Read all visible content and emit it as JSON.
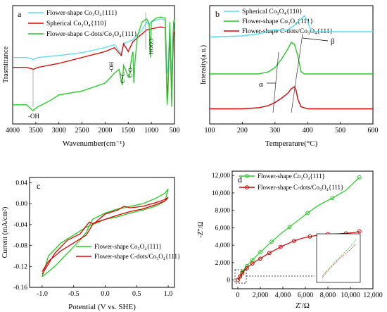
{
  "panels": {
    "a": {
      "label": "a",
      "xlabel": "Wavenumber(cm⁻¹)",
      "ylabel": "Trasmittance",
      "xticks": [
        "4000",
        "3500",
        "3000",
        "2500",
        "2000",
        "1500",
        "1000",
        "500"
      ],
      "annotations": [
        "-OH",
        "-OH",
        "C=C",
        "C-O",
        "-COOH"
      ],
      "legend": [
        "Flower-shape Co₃O₄{111}",
        "Spherical Co₃O₄{110}",
        "Flower-shape C-dots/Co₃O₄{111}"
      ]
    },
    "b": {
      "label": "b",
      "xlabel": "Temperature(°C)",
      "ylabel": "Intensity(a.u.)",
      "xticks": [
        "100",
        "200",
        "300",
        "400",
        "500",
        "600"
      ],
      "annotations": [
        "α",
        "β"
      ],
      "legend": [
        "Spherical Co₃O₄{110}",
        "Flower-shape Co₃O₄{111}",
        "Flower-shape C-dots/Co₃O₄{111}"
      ]
    },
    "c": {
      "label": "c",
      "xlabel": "Potential (V vs. SHE)",
      "ylabel": "Current (mA/cm²)",
      "xticks": [
        "-1.0",
        "-0.5",
        "0.0",
        "0.5",
        "1.0"
      ],
      "yticks": [
        "0.04",
        "0.00",
        "-0.04",
        "-0.08",
        "-0.12",
        "-0.16"
      ],
      "legend": [
        "Flower-shape Co₃O₄{111}",
        "Flower-shape C-dots/Co₃O₄{111}"
      ]
    },
    "d": {
      "label": "d",
      "xlabel": "Z'/Ω",
      "ylabel": "-Z''/Ω",
      "xticks": [
        "0",
        "2,000",
        "4,000",
        "6,000",
        "8,000",
        "10,000",
        "12,000"
      ],
      "yticks": [
        "12,000",
        "10,000",
        "8,000",
        "6,000",
        "4,000",
        "2,000",
        "0"
      ],
      "legend": [
        "Flower-shape Co₃O₄{111}",
        "Flower-shape C-dots/Co₃O₄{111}"
      ]
    }
  },
  "colors": {
    "cyan": "#55ddee",
    "red": "#dd0000",
    "green": "#22cc22",
    "darkred": "#cc0000"
  },
  "chart_data": [
    {
      "type": "line",
      "title": "",
      "xlabel": "Wavenumber(cm⁻¹)",
      "ylabel": "Trasmittance",
      "xlim": [
        4000,
        500
      ],
      "series": [
        {
          "name": "Flower-shape Co₃O₄{111}",
          "color": "#55ddee",
          "x": [
            4000,
            3700,
            3550,
            3450,
            3000,
            2500,
            2000,
            1800,
            1650,
            1600,
            1500,
            1400,
            1200,
            1100,
            1050,
            1000,
            900,
            800,
            700,
            660,
            640,
            600,
            560,
            540,
            520,
            500
          ],
          "y": [
            0.56,
            0.56,
            0.54,
            0.56,
            0.58,
            0.61,
            0.66,
            0.69,
            0.6,
            0.7,
            0.72,
            0.74,
            0.84,
            0.92,
            0.89,
            0.92,
            0.94,
            0.95,
            0.94,
            0.4,
            0.45,
            0.9,
            0.3,
            0.72,
            0.9,
            0.93
          ]
        },
        {
          "name": "Spherical Co₃O₄{110}",
          "color": "#dd0000",
          "x": [
            4000,
            3700,
            3550,
            3450,
            3000,
            2500,
            2000,
            1800,
            1650,
            1600,
            1500,
            1400,
            1250,
            1200,
            1100,
            1000,
            900,
            800,
            700,
            660,
            640,
            600,
            560,
            540,
            520,
            500
          ],
          "y": [
            0.46,
            0.46,
            0.44,
            0.46,
            0.5,
            0.56,
            0.62,
            0.66,
            0.58,
            0.7,
            0.62,
            0.72,
            0.78,
            0.8,
            0.84,
            0.85,
            0.86,
            0.87,
            0.86,
            0.14,
            0.3,
            0.8,
            0.12,
            0.52,
            0.8,
            0.83
          ]
        },
        {
          "name": "Flower-shape C-dots/Co₃O₄{111}",
          "color": "#22cc22",
          "x": [
            4000,
            3700,
            3560,
            3540,
            3450,
            3200,
            3000,
            2500,
            2000,
            1800,
            1700,
            1630,
            1600,
            1560,
            1500,
            1480,
            1430,
            1400,
            1380,
            1350,
            1300,
            1200,
            1100,
            1050,
            1020,
            1000,
            900,
            800,
            700,
            660,
            640,
            600,
            560,
            540,
            520,
            500
          ],
          "y": [
            0.08,
            0.08,
            0.02,
            0.03,
            0.06,
            0.12,
            0.18,
            0.22,
            0.3,
            0.4,
            0.44,
            0.28,
            0.48,
            0.44,
            0.36,
            0.36,
            0.56,
            0.62,
            0.3,
            0.54,
            0.78,
            0.92,
            0.95,
            0.9,
            0.56,
            0.92,
            0.96,
            0.97,
            0.96,
            0.08,
            0.2,
            0.92,
            0.06,
            0.62,
            0.92,
            0.95
          ]
        }
      ]
    },
    {
      "type": "line",
      "title": "",
      "xlabel": "Temperature(°C)",
      "ylabel": "Intensity(a.u.)",
      "xlim": [
        100,
        600
      ],
      "series": [
        {
          "name": "Spherical Co₃O₄{110}",
          "color": "#55ddee",
          "x": [
            100,
            200,
            250,
            300,
            320,
            340,
            360,
            380,
            390,
            400,
            410,
            420,
            500,
            600
          ],
          "y": [
            0.73,
            0.74,
            0.76,
            0.8,
            0.79,
            0.8,
            0.84,
            0.9,
            0.93,
            0.88,
            0.79,
            0.78,
            0.78,
            0.78
          ]
        },
        {
          "name": "Flower-shape Co₃O₄{111}",
          "color": "#22cc22",
          "x": [
            100,
            200,
            250,
            280,
            300,
            320,
            340,
            350,
            360,
            370,
            380,
            390,
            400,
            500,
            600
          ],
          "y": [
            0.38,
            0.38,
            0.38,
            0.4,
            0.44,
            0.52,
            0.62,
            0.68,
            0.66,
            0.55,
            0.4,
            0.38,
            0.38,
            0.38,
            0.38
          ]
        },
        {
          "name": "Flower-shape C-dots/Co₃O₄{111}",
          "color": "#dd0000",
          "x": [
            100,
            200,
            250,
            280,
            300,
            320,
            340,
            350,
            360,
            365,
            370,
            380,
            400,
            500,
            600
          ],
          "y": [
            0.05,
            0.05,
            0.06,
            0.08,
            0.11,
            0.15,
            0.2,
            0.24,
            0.26,
            0.22,
            0.14,
            0.07,
            0.05,
            0.05,
            0.05
          ]
        }
      ]
    },
    {
      "type": "line",
      "title": "",
      "xlabel": "Potential (V vs. SHE)",
      "ylabel": "Current (mA/cm²)",
      "xlim": [
        -1.2,
        1.1
      ],
      "ylim": [
        -0.16,
        0.05
      ],
      "series": [
        {
          "name": "Flower-shape Co₃O₄{111}",
          "color": "#22cc22",
          "x": [
            -1.0,
            -0.9,
            -0.7,
            -0.5,
            -0.3,
            -0.2,
            0.0,
            0.2,
            0.4,
            0.6,
            0.8,
            0.95,
            1.0,
            0.95,
            0.8,
            0.6,
            0.4,
            0.3,
            0.2,
            0.0,
            -0.2,
            -0.3,
            -0.4,
            -0.6,
            -0.8,
            -0.95,
            -1.0
          ],
          "y": [
            -0.14,
            -0.1,
            -0.075,
            -0.06,
            -0.045,
            -0.04,
            -0.03,
            -0.025,
            -0.018,
            -0.012,
            -0.005,
            0.005,
            0.028,
            0.02,
            0.01,
            0.0,
            -0.005,
            -0.008,
            -0.01,
            -0.018,
            -0.03,
            -0.055,
            -0.07,
            -0.095,
            -0.12,
            -0.135,
            -0.14
          ]
        },
        {
          "name": "Flower-shape C-dots/Co₃O₄{111}",
          "color": "#dd0000",
          "x": [
            -1.0,
            -0.8,
            -0.6,
            -0.4,
            -0.25,
            -0.2,
            0.0,
            0.2,
            0.4,
            0.6,
            0.8,
            0.95,
            1.0,
            0.95,
            0.8,
            0.6,
            0.4,
            0.3,
            0.2,
            0.0,
            -0.2,
            -0.3,
            -0.5,
            -0.7,
            -0.9,
            -1.0
          ],
          "y": [
            -0.135,
            -0.095,
            -0.07,
            -0.058,
            -0.035,
            -0.038,
            -0.03,
            -0.022,
            -0.015,
            -0.01,
            -0.002,
            0.005,
            0.012,
            0.008,
            0.002,
            -0.005,
            -0.008,
            -0.005,
            -0.012,
            -0.02,
            -0.04,
            -0.06,
            -0.075,
            -0.09,
            -0.11,
            -0.13
          ]
        }
      ]
    },
    {
      "type": "line",
      "title": "",
      "xlabel": "Z'/Ω",
      "ylabel": "-Z''/Ω",
      "xlim": [
        -500,
        12000
      ],
      "ylim": [
        -1000,
        12500
      ],
      "series": [
        {
          "name": "Flower-shape Co₃O₄{111}",
          "color": "#22cc22",
          "x": [
            0,
            100,
            200,
            300,
            400,
            600,
            800,
            1000,
            1300,
            1600,
            2000,
            2500,
            3000,
            3800,
            4600,
            5400,
            6200,
            7200,
            8400,
            9600,
            10800
          ],
          "y": [
            0,
            200,
            450,
            700,
            950,
            1300,
            1600,
            1900,
            2300,
            2700,
            3200,
            3800,
            4400,
            5300,
            6100,
            6900,
            7700,
            8600,
            9400,
            10300,
            11800
          ]
        },
        {
          "name": "Flower-shape C-dots/Co₃O₄{111}",
          "color": "#cc0000",
          "x": [
            0,
            100,
            200,
            300,
            400,
            600,
            800,
            1000,
            1300,
            1600,
            2000,
            2400,
            2800,
            3300,
            3800,
            4400,
            5000,
            5700,
            6400,
            7200,
            8000,
            8800,
            9600,
            10400,
            10800
          ],
          "y": [
            0,
            200,
            400,
            600,
            800,
            1100,
            1350,
            1600,
            1900,
            2150,
            2450,
            2800,
            3100,
            3450,
            3800,
            4150,
            4500,
            4800,
            5000,
            5150,
            5250,
            5300,
            5350,
            5450,
            5600
          ]
        }
      ]
    }
  ]
}
